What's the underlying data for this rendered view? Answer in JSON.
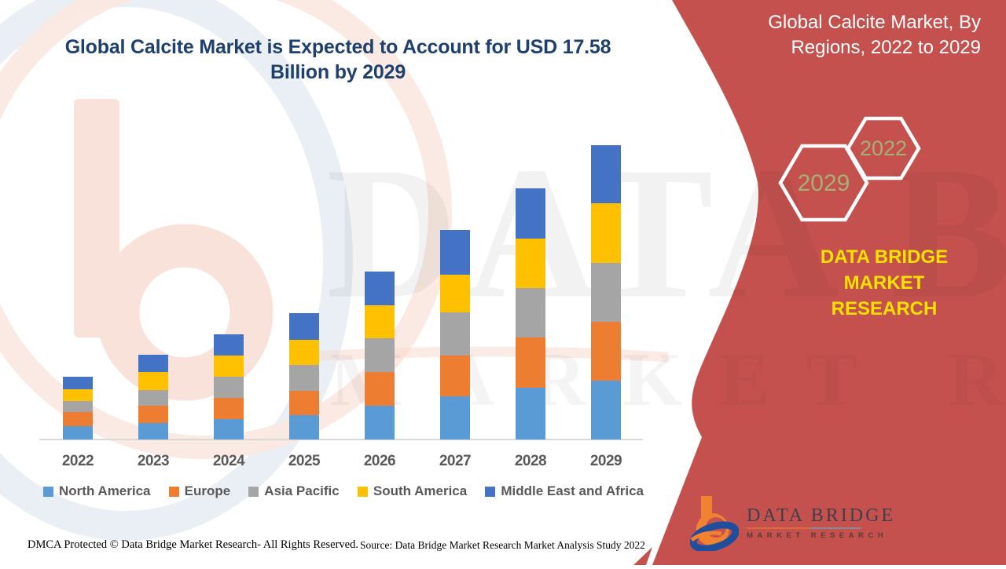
{
  "main_title": {
    "line1": "Global Calcite Market is Expected to Account for USD 17.58",
    "line2": "Billion by 2029"
  },
  "right_panel": {
    "title_line1": "Global Calcite Market, By",
    "title_line2": "Regions, 2022 to 2029",
    "hexagon_back_label": "2029",
    "hexagon_front_label": "2022",
    "brand_line1": "DATA BRIDGE MARKET",
    "brand_line2": "RESEARCH"
  },
  "logo": {
    "name": "DATA BRIDGE",
    "subtitle": "MARKET RESEARCH"
  },
  "watermark": {
    "brand": "DATA BRIDGE",
    "subtitle": "MARKET RESEARCH"
  },
  "footer": {
    "dmca": "DMCA Protected © Data Bridge Market Research- All Rights Reserved.",
    "source": "Source: Data Bridge Market Research Market Analysis Study 2022"
  },
  "colors": {
    "panel_red": "#c5514e",
    "title_navy": "#1e406f",
    "brand_yellow": "#ffe100",
    "hexagon_label_green": "#a5b077",
    "axis_text_gray": "#595959",
    "axis_line_gray": "#d9d9d9"
  },
  "chart_data": {
    "type": "bar",
    "stacked": true,
    "title": "Global Calcite Market, By Regions, 2022 to 2029",
    "unit": "USD Billion",
    "categories": [
      "2022",
      "2023",
      "2024",
      "2025",
      "2026",
      "2027",
      "2028",
      "2029"
    ],
    "series": [
      {
        "name": "North America",
        "color": "#5b9bd5",
        "values": [
          0.8,
          0.98,
          1.22,
          1.45,
          2.02,
          2.58,
          3.09,
          3.52
        ]
      },
      {
        "name": "Europe",
        "color": "#ed7d31",
        "values": [
          0.84,
          1.03,
          1.27,
          1.45,
          2.02,
          2.44,
          3.0,
          3.52
        ]
      },
      {
        "name": "Asia Pacific",
        "color": "#a5a5a5",
        "values": [
          0.66,
          0.94,
          1.27,
          1.55,
          2.02,
          2.58,
          2.95,
          3.52
        ]
      },
      {
        "name": "South America",
        "color": "#ffc000",
        "values": [
          0.7,
          1.08,
          1.27,
          1.5,
          1.97,
          2.25,
          2.95,
          3.56
        ]
      },
      {
        "name": "Middle East and Africa",
        "color": "#4472c4",
        "values": [
          0.75,
          1.03,
          1.27,
          1.59,
          2.02,
          2.67,
          3.0,
          3.46
        ]
      }
    ],
    "totals": [
      3.75,
      5.06,
      6.3,
      7.54,
      10.05,
      12.52,
      14.99,
      17.58
    ],
    "ylim": [
      0,
      18
    ],
    "gridlines": false,
    "y_axis_visible": false,
    "legend_position": "bottom"
  }
}
